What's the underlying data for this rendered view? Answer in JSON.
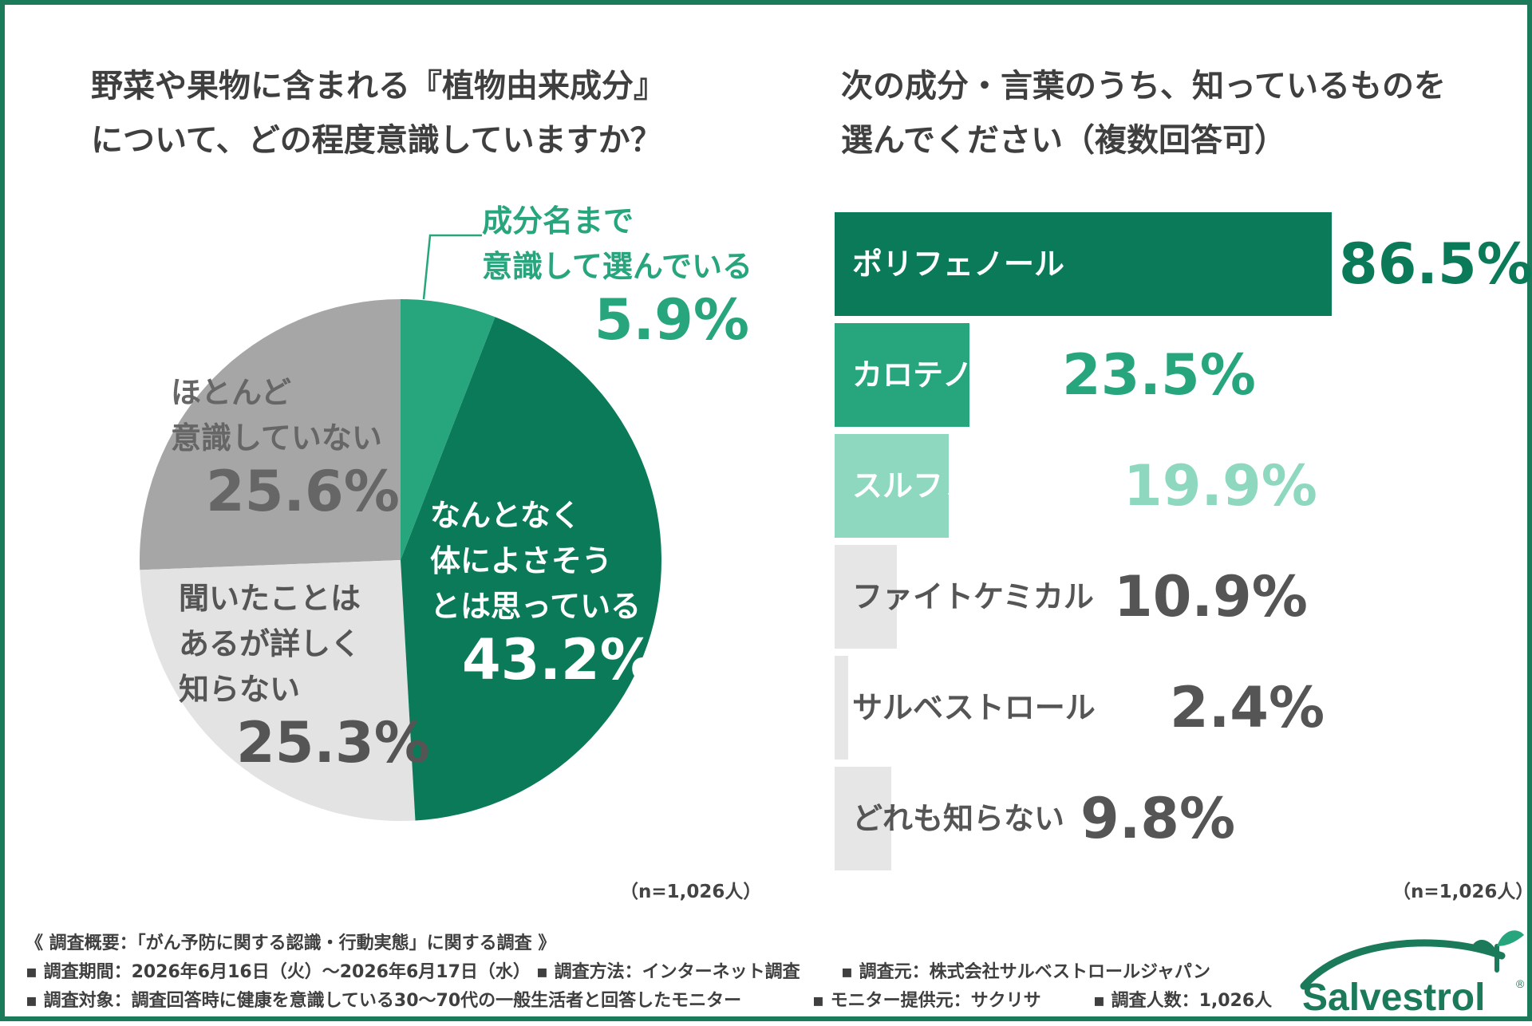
{
  "colors": {
    "frame": "#1a7a5a",
    "dark_green": "#0b7a58",
    "mid_green": "#27a57d",
    "light_green": "#8dd8bf",
    "dark_gray": "#a6a6a6",
    "light_gray": "#e3e3e3",
    "pale_gray": "#e6e6e6"
  },
  "pie": {
    "title_lines": [
      "野菜や果物に含まれる『植物由来成分』",
      "について、どの程度意識していますか？"
    ],
    "sample": "（n=1,026人）"
  },
  "bar": {
    "title_lines": [
      "次の成分・言葉のうち、知っているものを",
      "選んでください（複数回答可）"
    ],
    "sample": "（n=1,026人）"
  },
  "chart_data": [
    {
      "type": "pie",
      "title": "野菜や果物に含まれる『植物由来成分』について、どの程度意識していますか？",
      "slices": [
        {
          "label_lines": [
            "成分名まで",
            "意識して選んでいる"
          ],
          "value": 5.9,
          "display": "5.9%",
          "color": "#27a57d"
        },
        {
          "label_lines": [
            "なんとなく",
            "体によさそう",
            "とは思っている"
          ],
          "value": 43.2,
          "display": "43.2%",
          "color": "#0b7a58"
        },
        {
          "label_lines": [
            "聞いたことは",
            "あるが詳しく",
            "知らない"
          ],
          "value": 25.3,
          "display": "25.3%",
          "color": "#e3e3e3"
        },
        {
          "label_lines": [
            "ほとんど",
            "意識していない"
          ],
          "value": 25.6,
          "display": "25.6%",
          "color": "#a6a6a6"
        }
      ],
      "start": "12 o'clock",
      "direction": "clockwise"
    },
    {
      "type": "bar",
      "orientation": "horizontal",
      "title": "次の成分・言葉のうち、知っているものを選んでください（複数回答可）",
      "categories": [
        "ポリフェノール",
        "カロテノイド",
        "スルフォラファン",
        "ファイトケミカル",
        "サルベストロール",
        "どれも知らない"
      ],
      "values": [
        86.5,
        23.5,
        19.9,
        10.9,
        2.4,
        9.8
      ],
      "value_labels": [
        "86.5%",
        "23.5%",
        "19.9%",
        "10.9%",
        "2.4%",
        "9.8%"
      ],
      "xlim": [
        0,
        100
      ],
      "grid": false
    }
  ],
  "footer": {
    "summary": "《 調査概要：「がん予防に関する認識・行動実態」に関する調査 》",
    "period": "▪ 調査期間：2026年6月16日（火）～2026年6月17日（水）",
    "method": "▪ 調査方法：インターネット調査",
    "source": "▪ 調査元：株式会社サルベストロールジャパン",
    "target": "▪ 調査対象：調査回答時に健康を意識している30～70代の一般生活者と回答したモニター",
    "provider": "▪ モニター提供元：サクリサ",
    "count": "▪ 調査人数：1,026人"
  },
  "logo": {
    "text": "Salvestrol",
    "mark": "®"
  }
}
